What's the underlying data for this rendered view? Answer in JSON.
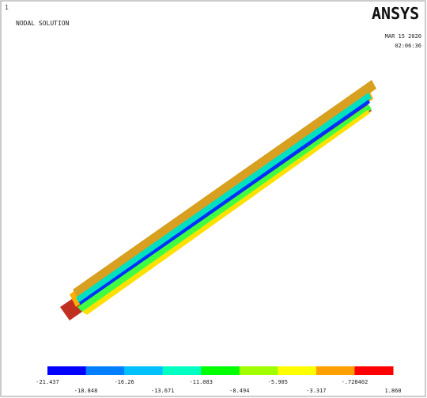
{
  "header": {
    "window_number": "1",
    "title": "NODAL SOLUTION",
    "logo": "ANSYS",
    "date": "MAR 15 2020",
    "time": "02:06:36"
  },
  "legend": {
    "colors": [
      "#0000ff",
      "#0080ff",
      "#00c0ff",
      "#00ffc0",
      "#00ff00",
      "#a0ff00",
      "#ffff00",
      "#ffa000",
      "#ff0000"
    ],
    "labels": [
      "-21.437",
      "-18.848",
      "-16.26",
      "-13.671",
      "-11.083",
      "-8.494",
      "-5.905",
      "-3.317",
      "-.728402",
      "1.860"
    ]
  }
}
